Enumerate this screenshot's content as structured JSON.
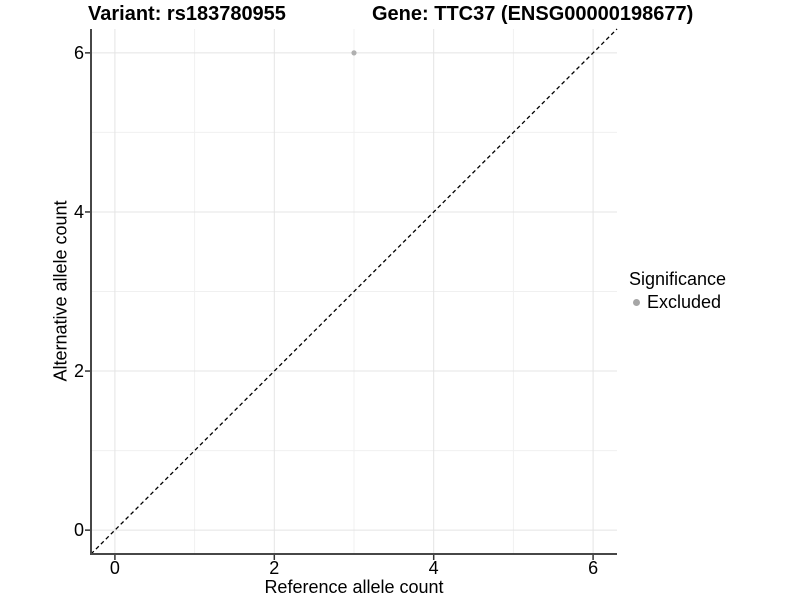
{
  "titles": {
    "variant": "Variant: rs183780955",
    "gene": "Gene: TTC37 (ENSG00000198677)"
  },
  "chart_data": {
    "type": "scatter",
    "title_left": "Variant: rs183780955",
    "title_right": "Gene: TTC37 (ENSG00000198677)",
    "xlabel": "Reference allele count",
    "ylabel": "Alternative allele count",
    "xlim": [
      -0.3,
      6.3
    ],
    "ylim": [
      -0.3,
      6.3
    ],
    "x_ticks": [
      0,
      2,
      4,
      6
    ],
    "y_ticks": [
      0,
      2,
      4,
      6
    ],
    "x_minor_gridlines": [
      1,
      3,
      5
    ],
    "y_minor_gridlines": [
      1,
      3,
      5
    ],
    "grid": true,
    "points": [
      {
        "x": 3,
        "y": 6,
        "series": "Excluded"
      }
    ],
    "identity_line": {
      "style": "dashed",
      "from": -0.3,
      "to": 6.3
    },
    "legend": {
      "title": "Significance",
      "position": "right",
      "entries": [
        {
          "label": "Excluded",
          "color": "#a6a6a6"
        }
      ]
    },
    "colors": {
      "point": "#b0b0b0",
      "grid_major": "#e4e4e4",
      "grid_minor": "#f0f0f0",
      "axis_line": "#474747",
      "tick_mark": "#333333",
      "dashed_line": "#000000",
      "text": "#000000"
    }
  }
}
